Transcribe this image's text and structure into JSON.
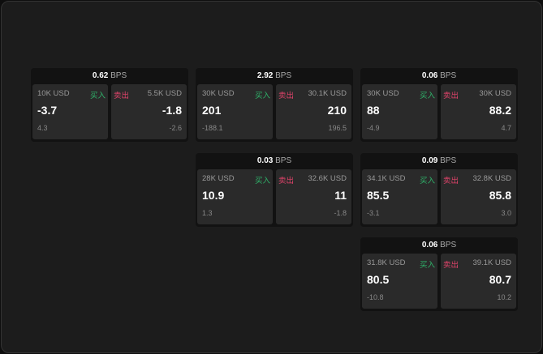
{
  "unit": "BPS",
  "buy_label": "买入",
  "sell_label": "卖出",
  "colors": {
    "buy": "#2fb36a",
    "sell": "#e0436a"
  },
  "widgets": [
    {
      "spread": "0.62",
      "buy": {
        "qty": "10K USD",
        "price": "-3.7",
        "change": "4.3"
      },
      "sell": {
        "qty": "5.5K USD",
        "price": "-1.8",
        "change": "-2.6"
      }
    },
    {
      "spread": "2.92",
      "buy": {
        "qty": "30K USD",
        "price": "201",
        "change": "-188.1"
      },
      "sell": {
        "qty": "30.1K USD",
        "price": "210",
        "change": "196.5"
      }
    },
    {
      "spread": "0.06",
      "buy": {
        "qty": "30K USD",
        "price": "88",
        "change": "-4.9"
      },
      "sell": {
        "qty": "30K USD",
        "price": "88.2",
        "change": "4.7"
      }
    },
    {
      "spread": "0.03",
      "buy": {
        "qty": "28K USD",
        "price": "10.9",
        "change": "1.3"
      },
      "sell": {
        "qty": "32.6K USD",
        "price": "11",
        "change": "-1.8"
      }
    },
    {
      "spread": "0.09",
      "buy": {
        "qty": "34.1K USD",
        "price": "85.5",
        "change": "-3.1"
      },
      "sell": {
        "qty": "32.8K USD",
        "price": "85.8",
        "change": "3.0"
      }
    },
    {
      "spread": "0.06",
      "buy": {
        "qty": "31.8K USD",
        "price": "80.5",
        "change": "-10.8"
      },
      "sell": {
        "qty": "39.1K USD",
        "price": "80.7",
        "change": "10.2"
      }
    }
  ]
}
